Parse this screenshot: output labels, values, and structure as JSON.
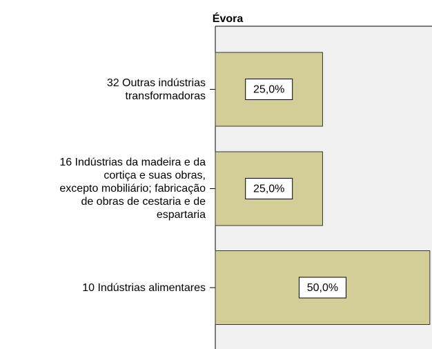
{
  "chart_data": {
    "type": "bar",
    "orientation": "horizontal",
    "title": "Évora",
    "categories": [
      "32 Outras indústrias\ntransformadoras",
      "16 Indústrias da madeira e da\ncortiça e suas  obras,\nexcepto mobiliário; fabricação\nde obras de cestaria e de\nespartaria",
      "10 Indústrias alimentares"
    ],
    "values": [
      25,
      25,
      50
    ],
    "value_labels": [
      "25,0%",
      "25,0%",
      "50,0%"
    ],
    "color": "#d3ce97",
    "xlim": [
      0,
      50.5
    ]
  }
}
